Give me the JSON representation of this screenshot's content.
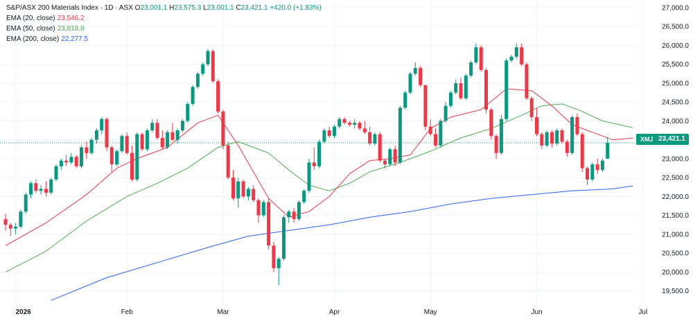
{
  "legend": {
    "title": "S&P/ASX 200 Materials Index · 1D · ASX",
    "open_label": "O",
    "open": "23,001.1",
    "high_label": "H",
    "high": "23,575.3",
    "low_label": "L",
    "low": "23,001.1",
    "close_label": "C",
    "close": "23,421.1",
    "change": "+420.0 (+1.83%)",
    "ema20_label": "EMA (20, close)",
    "ema20_value": "23,546.2",
    "ema50_label": "EMA (50, close)",
    "ema50_value": "23,818.8",
    "ema200_label": "EMA (200, close)",
    "ema200_value": "22,277.5"
  },
  "price_badge": {
    "symbol": "XMJ",
    "value": "23,421.1"
  },
  "colors": {
    "up": "#089981",
    "down": "#f23645",
    "ema20": "#f23645",
    "ema50": "#4caf50",
    "ema200": "#2962ff",
    "grid": "#f0f3fa",
    "axis_text": "#131722"
  },
  "chart_data": {
    "type": "candlestick",
    "title": "S&P/ASX 200 Materials Index · 1D · ASX",
    "ylim": [
      19200,
      27000
    ],
    "y_ticks": [
      "19,500.0",
      "20,000.0",
      "20,500.0",
      "21,000.0",
      "21,500.0",
      "22,000.0",
      "22,500.0",
      "23,000.0",
      "23,500.0",
      "24,000.0",
      "24,500.0",
      "25,000.0",
      "25,500.0",
      "26,000.0",
      "26,500.0",
      "27,000.0"
    ],
    "x_labels": [
      {
        "label": "2026",
        "index": 2
      },
      {
        "label": "Feb",
        "index": 24
      },
      {
        "label": "Mar",
        "index": 43
      },
      {
        "label": "Apr",
        "index": 65
      },
      {
        "label": "May",
        "index": 84
      },
      {
        "label": "Jun",
        "index": 105
      },
      {
        "label": "Jul",
        "index": 126
      }
    ],
    "last_price": 23421.1,
    "candles": [
      [
        21400,
        21550,
        21100,
        21250
      ],
      [
        21250,
        21300,
        20950,
        21150
      ],
      [
        21150,
        21300,
        21000,
        21200
      ],
      [
        21200,
        21650,
        21150,
        21600
      ],
      [
        21600,
        22100,
        21550,
        22050
      ],
      [
        22050,
        22400,
        21950,
        22350
      ],
      [
        22350,
        22450,
        22100,
        22150
      ],
      [
        22150,
        22300,
        22050,
        22200
      ],
      [
        22200,
        22400,
        22000,
        22100
      ],
      [
        22100,
        22500,
        22050,
        22450
      ],
      [
        22450,
        22850,
        22400,
        22800
      ],
      [
        22800,
        23000,
        22700,
        22950
      ],
      [
        22950,
        23100,
        22800,
        22900
      ],
      [
        22900,
        23150,
        22850,
        23050
      ],
      [
        23050,
        23100,
        22750,
        22800
      ],
      [
        22800,
        23350,
        22750,
        23300
      ],
      [
        23300,
        23450,
        23000,
        23150
      ],
      [
        23150,
        23550,
        23100,
        23500
      ],
      [
        23500,
        23800,
        23400,
        23750
      ],
      [
        23750,
        24100,
        23650,
        24050
      ],
      [
        24050,
        24100,
        23200,
        23300
      ],
      [
        23300,
        23350,
        22650,
        22850
      ],
      [
        22850,
        23250,
        22800,
        23200
      ],
      [
        23200,
        23650,
        23150,
        23600
      ],
      [
        23600,
        23700,
        23100,
        23150
      ],
      [
        23150,
        23350,
        22400,
        22450
      ],
      [
        22450,
        23700,
        22400,
        23650
      ],
      [
        23650,
        23700,
        23200,
        23250
      ],
      [
        23250,
        23800,
        23200,
        23750
      ],
      [
        23750,
        24050,
        23700,
        23950
      ],
      [
        23950,
        24050,
        23500,
        23550
      ],
      [
        23550,
        23750,
        23250,
        23300
      ],
      [
        23300,
        23750,
        23250,
        23700
      ],
      [
        23700,
        23950,
        23450,
        23500
      ],
      [
        23500,
        23800,
        23400,
        23750
      ],
      [
        23750,
        24050,
        23700,
        24000
      ],
      [
        24000,
        24500,
        23950,
        24450
      ],
      [
        24450,
        24950,
        24400,
        24900
      ],
      [
        24900,
        25300,
        24850,
        25250
      ],
      [
        25250,
        25550,
        25200,
        25500
      ],
      [
        25500,
        25900,
        25450,
        25850
      ],
      [
        25850,
        25900,
        25000,
        25050
      ],
      [
        25050,
        25100,
        24200,
        24250
      ],
      [
        24250,
        24300,
        23250,
        23350
      ],
      [
        23350,
        23450,
        22450,
        22500
      ],
      [
        22500,
        22700,
        21900,
        21950
      ],
      [
        21950,
        22500,
        21700,
        22400
      ],
      [
        22400,
        22450,
        21950,
        22000
      ],
      [
        22000,
        22250,
        21900,
        22200
      ],
      [
        22200,
        22300,
        21850,
        21900
      ],
      [
        21900,
        21950,
        21300,
        21500
      ],
      [
        21500,
        21900,
        21450,
        21850
      ],
      [
        21850,
        21950,
        20600,
        20700
      ],
      [
        20700,
        20800,
        20000,
        20100
      ],
      [
        20100,
        20400,
        19650,
        20350
      ],
      [
        20350,
        21500,
        20300,
        21450
      ],
      [
        21450,
        21650,
        21300,
        21600
      ],
      [
        21600,
        21700,
        21300,
        21400
      ],
      [
        21400,
        21900,
        21350,
        21850
      ],
      [
        21850,
        22200,
        21800,
        22150
      ],
      [
        22150,
        23000,
        22100,
        22900
      ],
      [
        22900,
        23300,
        22700,
        22800
      ],
      [
        22800,
        23500,
        22750,
        23450
      ],
      [
        23450,
        23800,
        23400,
        23750
      ],
      [
        23750,
        23850,
        23550,
        23600
      ],
      [
        23600,
        23900,
        23550,
        23850
      ],
      [
        23850,
        24100,
        23800,
        24050
      ],
      [
        24050,
        24100,
        23900,
        23950
      ],
      [
        23950,
        24000,
        23850,
        23900
      ],
      [
        23900,
        24050,
        23800,
        23950
      ],
      [
        23950,
        24000,
        23750,
        23800
      ],
      [
        23800,
        24000,
        23650,
        23700
      ],
      [
        23700,
        23850,
        23350,
        23400
      ],
      [
        23400,
        23700,
        23350,
        23650
      ],
      [
        23650,
        23700,
        22900,
        22950
      ],
      [
        22950,
        23000,
        22750,
        22850
      ],
      [
        22850,
        23300,
        22800,
        23250
      ],
      [
        23250,
        23350,
        22800,
        22900
      ],
      [
        22900,
        24400,
        22850,
        24350
      ],
      [
        24350,
        24800,
        24300,
        24750
      ],
      [
        24750,
        25300,
        24700,
        25250
      ],
      [
        25250,
        25550,
        25200,
        25400
      ],
      [
        25400,
        25450,
        24900,
        24950
      ],
      [
        24950,
        24950,
        23750,
        23850
      ],
      [
        23850,
        24050,
        23600,
        23650
      ],
      [
        23650,
        23800,
        23300,
        23350
      ],
      [
        23350,
        24050,
        23300,
        24000
      ],
      [
        24000,
        24500,
        23950,
        24400
      ],
      [
        24400,
        24800,
        24350,
        24750
      ],
      [
        24750,
        25100,
        24700,
        25000
      ],
      [
        25000,
        25150,
        24550,
        24600
      ],
      [
        24600,
        25250,
        24550,
        25200
      ],
      [
        25200,
        25600,
        25150,
        25550
      ],
      [
        25550,
        26050,
        25500,
        25950
      ],
      [
        25950,
        26000,
        25300,
        25350
      ],
      [
        25350,
        25400,
        24200,
        24300
      ],
      [
        24300,
        24350,
        23500,
        23600
      ],
      [
        23600,
        23650,
        23000,
        23150
      ],
      [
        23150,
        24150,
        23100,
        24050
      ],
      [
        24050,
        25650,
        24000,
        25600
      ],
      [
        25600,
        25750,
        25550,
        25700
      ],
      [
        25700,
        26050,
        25650,
        25950
      ],
      [
        25950,
        26050,
        25450,
        25500
      ],
      [
        25500,
        25550,
        24550,
        24600
      ],
      [
        24600,
        24650,
        24000,
        24100
      ],
      [
        24100,
        24350,
        23600,
        23650
      ],
      [
        23650,
        23700,
        23250,
        23350
      ],
      [
        23350,
        23750,
        23300,
        23700
      ],
      [
        23700,
        23750,
        23300,
        23400
      ],
      [
        23400,
        23800,
        23350,
        23750
      ],
      [
        23750,
        23800,
        23400,
        23450
      ],
      [
        23450,
        23500,
        23050,
        23150
      ],
      [
        23150,
        24150,
        23100,
        24100
      ],
      [
        24100,
        24200,
        23600,
        23650
      ],
      [
        23650,
        23700,
        22650,
        22750
      ],
      [
        22750,
        22800,
        22300,
        22450
      ],
      [
        22450,
        22900,
        22400,
        22850
      ],
      [
        22850,
        23000,
        22600,
        22700
      ],
      [
        22700,
        23000,
        22650,
        22950
      ],
      [
        23001.1,
        23575.3,
        23001.1,
        23421.1
      ]
    ],
    "ema20": [
      [
        0,
        20700
      ],
      [
        8,
        21300
      ],
      [
        16,
        22050
      ],
      [
        22,
        22750
      ],
      [
        26,
        23000
      ],
      [
        32,
        23300
      ],
      [
        38,
        23950
      ],
      [
        42,
        24150
      ],
      [
        46,
        23350
      ],
      [
        52,
        21950
      ],
      [
        56,
        21450
      ],
      [
        60,
        21600
      ],
      [
        64,
        22000
      ],
      [
        68,
        22600
      ],
      [
        72,
        22950
      ],
      [
        76,
        23000
      ],
      [
        80,
        23100
      ],
      [
        84,
        23800
      ],
      [
        88,
        24100
      ],
      [
        94,
        24300
      ],
      [
        99,
        24850
      ],
      [
        104,
        24800
      ],
      [
        108,
        24400
      ],
      [
        112,
        23900
      ],
      [
        116,
        23700
      ],
      [
        120,
        23500
      ],
      [
        124,
        23546.2
      ]
    ],
    "ema50": [
      [
        0,
        20000
      ],
      [
        8,
        20550
      ],
      [
        16,
        21350
      ],
      [
        24,
        22000
      ],
      [
        30,
        22350
      ],
      [
        36,
        22750
      ],
      [
        42,
        23300
      ],
      [
        46,
        23450
      ],
      [
        52,
        23150
      ],
      [
        56,
        22700
      ],
      [
        60,
        22300
      ],
      [
        64,
        22150
      ],
      [
        68,
        22350
      ],
      [
        72,
        22650
      ],
      [
        78,
        22900
      ],
      [
        84,
        23200
      ],
      [
        90,
        23550
      ],
      [
        96,
        23800
      ],
      [
        102,
        24150
      ],
      [
        106,
        24400
      ],
      [
        110,
        24450
      ],
      [
        114,
        24250
      ],
      [
        118,
        24000
      ],
      [
        124,
        23818.8
      ]
    ],
    "ema200": [
      [
        9,
        19250
      ],
      [
        20,
        19850
      ],
      [
        30,
        20250
      ],
      [
        40,
        20650
      ],
      [
        48,
        20950
      ],
      [
        56,
        21100
      ],
      [
        64,
        21250
      ],
      [
        72,
        21450
      ],
      [
        80,
        21600
      ],
      [
        88,
        21800
      ],
      [
        96,
        21950
      ],
      [
        104,
        22050
      ],
      [
        112,
        22150
      ],
      [
        120,
        22200
      ],
      [
        124,
        22277.5
      ]
    ]
  }
}
